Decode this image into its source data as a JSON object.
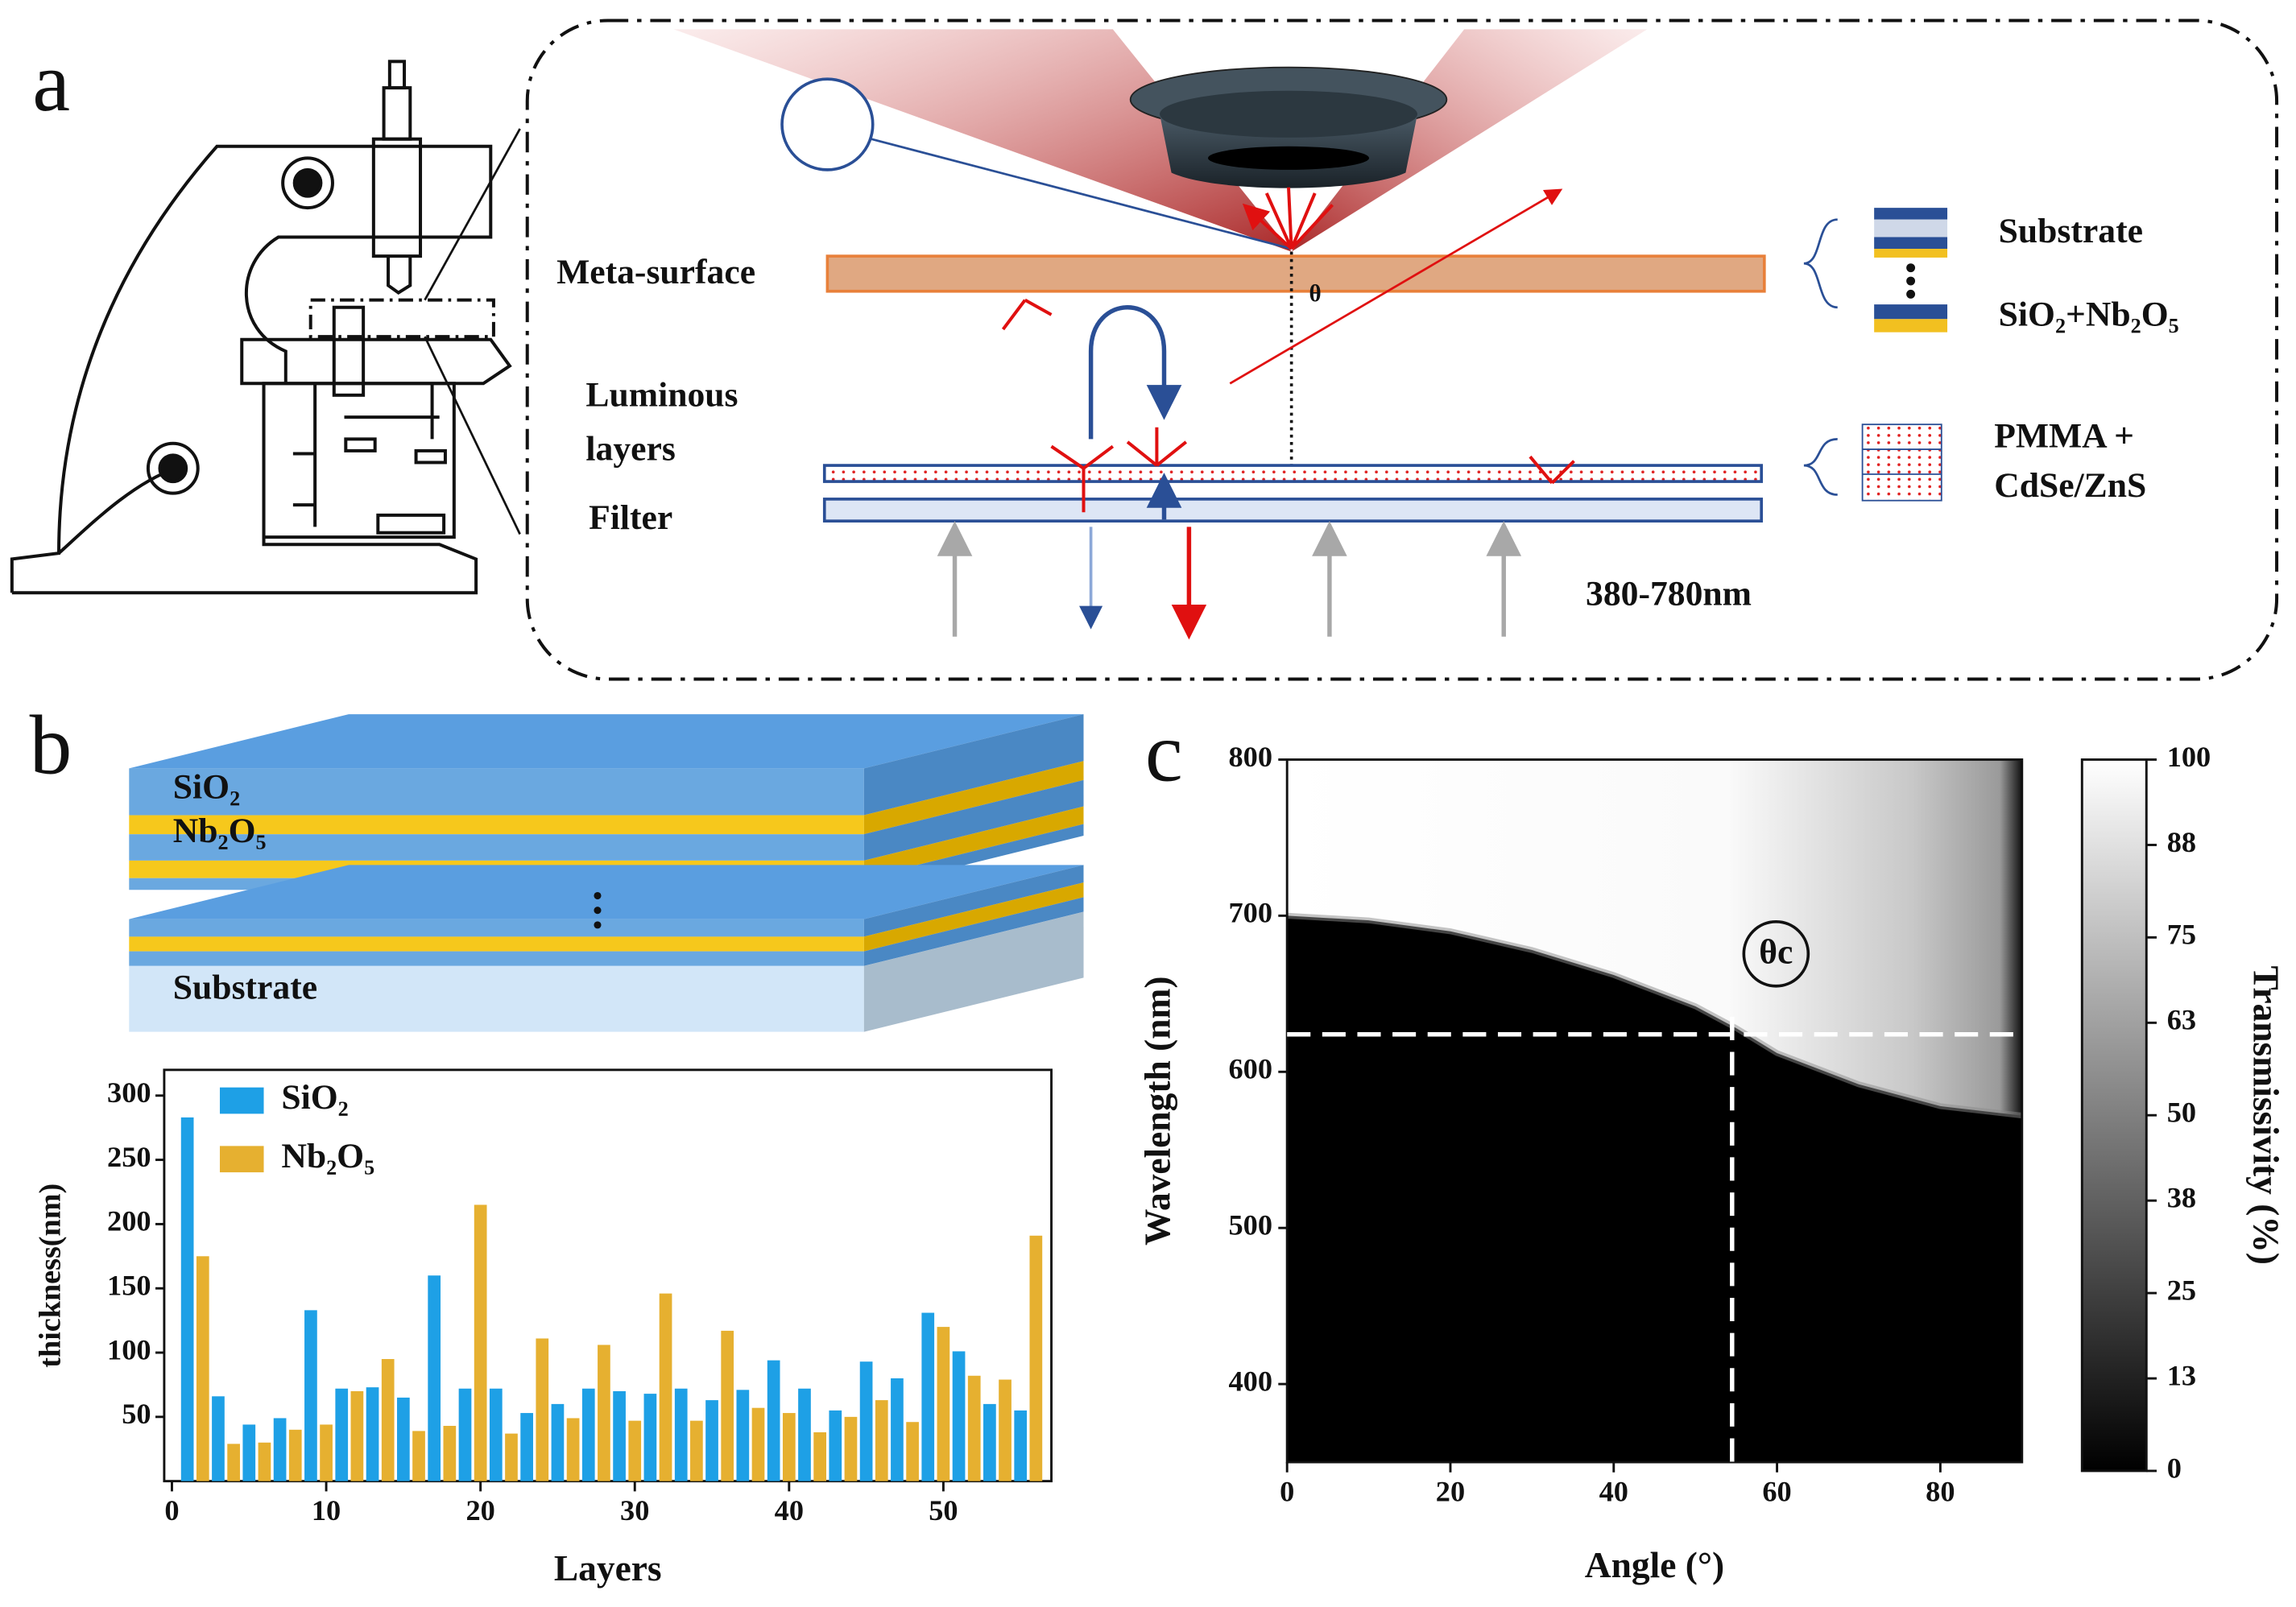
{
  "panels": [
    "a",
    "b",
    "c"
  ],
  "diagram_a": {
    "labels": {
      "meta_surface": "Meta-surface",
      "luminous": "Luminous",
      "layers": "layers",
      "filter": "Filter",
      "theta": "θ",
      "substrate": "Substrate",
      "stack": "SiO₂+Nb₂O₅",
      "pmma": "PMMA +",
      "qd": "CdSe/ZnS",
      "range": "380-780nm"
    }
  },
  "diagram_b": {
    "labels": {
      "sio2": "SiO₂",
      "nb2o5": "Nb₂O₅",
      "substrate": "Substrate"
    }
  },
  "chart_data": [
    {
      "type": "bar",
      "xlabel": "Layers",
      "ylabel": "thickness(nm)",
      "x": [
        1,
        2,
        3,
        4,
        5,
        6,
        7,
        8,
        9,
        10,
        11,
        12,
        13,
        14,
        15,
        16,
        17,
        18,
        19,
        20,
        21,
        22,
        23,
        24,
        25,
        26,
        27,
        28,
        29,
        30,
        31,
        32,
        33,
        34,
        35,
        36,
        37,
        38,
        39,
        40,
        41,
        42,
        43,
        44,
        45,
        46,
        47,
        48,
        49,
        50,
        51,
        52,
        53,
        54,
        55,
        56
      ],
      "xlim": [
        -0.5,
        57
      ],
      "xticks": [
        0,
        10,
        20,
        30,
        40,
        50
      ],
      "ylim": [
        0,
        320
      ],
      "yticks": [
        50,
        100,
        150,
        200,
        250,
        300
      ],
      "series": [
        {
          "name": "SiO₂",
          "color": "#1ea0e6",
          "values": [
            283,
            null,
            66,
            null,
            44,
            null,
            49,
            null,
            133,
            null,
            72,
            null,
            73,
            null,
            65,
            null,
            160,
            null,
            72,
            null,
            72,
            null,
            53,
            null,
            60,
            null,
            72,
            null,
            70,
            null,
            68,
            null,
            72,
            null,
            63,
            null,
            71,
            null,
            94,
            null,
            72,
            null,
            55,
            null,
            93,
            null,
            80,
            null,
            131,
            null,
            101,
            null,
            60,
            null,
            55,
            null
          ]
        },
        {
          "name": "Nb₂O₅",
          "color": "#e6b030",
          "values": [
            null,
            175,
            null,
            29,
            null,
            30,
            null,
            40,
            null,
            44,
            null,
            70,
            null,
            95,
            null,
            39,
            null,
            43,
            null,
            215,
            null,
            37,
            null,
            111,
            null,
            49,
            null,
            106,
            null,
            47,
            null,
            146,
            null,
            47,
            null,
            117,
            null,
            57,
            null,
            53,
            null,
            38,
            null,
            50,
            null,
            63,
            null,
            46,
            null,
            120,
            null,
            82,
            null,
            79,
            null,
            191
          ]
        }
      ]
    },
    {
      "type": "heatmap",
      "xlabel": "Angle (°)",
      "ylabel": "Wavelength (nm)",
      "xlim": [
        0,
        90
      ],
      "xticks": [
        0,
        20,
        40,
        60,
        80
      ],
      "ylim": [
        350,
        800
      ],
      "yticks": [
        400,
        500,
        600,
        700,
        800
      ],
      "edge": {
        "x": [
          0,
          10,
          20,
          30,
          40,
          50,
          55,
          60,
          70,
          80,
          90
        ],
        "y": [
          700,
          697,
          690,
          678,
          662,
          642,
          628,
          612,
          592,
          578,
          572
        ]
      },
      "critical_angle": 54.5,
      "critical_wavelength": 624,
      "annotation": "θc",
      "colorbar": {
        "label": "Transmissivity (%)",
        "lim": [
          0,
          100
        ],
        "ticks": [
          0,
          13,
          25,
          38,
          50,
          63,
          75,
          88,
          100
        ]
      }
    }
  ]
}
